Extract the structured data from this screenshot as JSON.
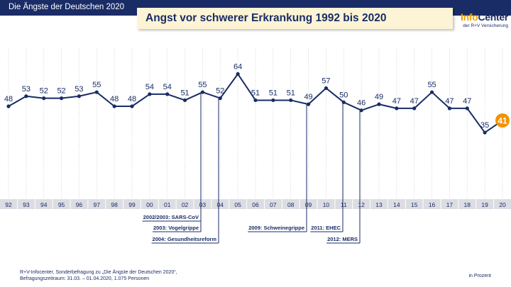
{
  "header": {
    "title": "Die Ängste der Deutschen 2020"
  },
  "logo": {
    "part1": "Info",
    "part2": "Center",
    "subtitle": "der R+V Versicherung"
  },
  "colors": {
    "navy": "#1a2c66",
    "accent": "#f2a100",
    "highlight": "#f39200",
    "title_bg": "#fcf4d4"
  },
  "chart_data": {
    "type": "line",
    "title": "Angst vor schwerer Erkrankung 1992 bis 2020",
    "x": [
      "92",
      "93",
      "94",
      "95",
      "96",
      "97",
      "98",
      "99",
      "00",
      "01",
      "02",
      "03",
      "04",
      "05",
      "06",
      "07",
      "08",
      "09",
      "10",
      "11",
      "12",
      "13",
      "14",
      "15",
      "16",
      "17",
      "18",
      "19",
      "20"
    ],
    "values": [
      48,
      53,
      52,
      52,
      53,
      55,
      48,
      48,
      54,
      54,
      51,
      55,
      52,
      64,
      51,
      51,
      51,
      49,
      57,
      50,
      46,
      49,
      47,
      47,
      55,
      47,
      47,
      35,
      41
    ],
    "highlight_last": true,
    "unit": "in Prozent",
    "annotations": [
      {
        "x": "03",
        "text": "2002/2003: SARS-CoV"
      },
      {
        "x": "03",
        "text": "2003: Vogelgrippe"
      },
      {
        "x": "04",
        "text": "2004: Gesundheitsreform"
      },
      {
        "x": "09",
        "text": "2009: Schweinegrippe"
      },
      {
        "x": "11",
        "text": "2011: EHEC"
      },
      {
        "x": "12",
        "text": "2012: MERS"
      }
    ]
  },
  "footer": {
    "source_line1": "R+V-Infocenter, Sonderbefragung zu „Die Ängste der Deutschen 2020“,",
    "source_line2": "Befragungszeitraum: 31.03. – 01.04.2020, 1.075 Personen",
    "unit": "in Prozent"
  }
}
